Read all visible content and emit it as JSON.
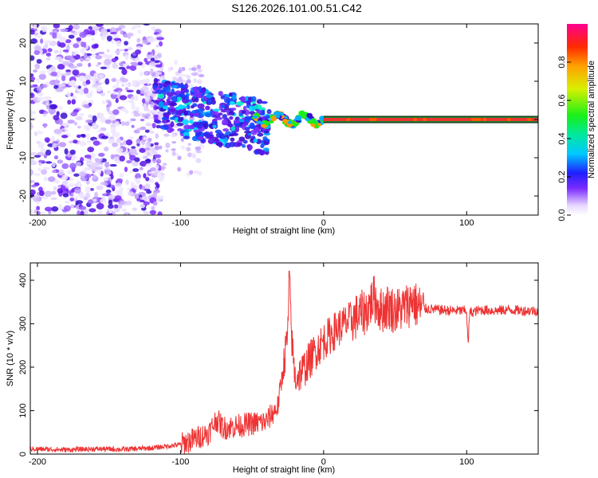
{
  "title": "S126.2026.101.00.51.C42",
  "colors": {
    "line": "#ee3333",
    "frame": "#000000",
    "band_fill": "#ee3333",
    "band_edge": "#1b8a2a",
    "band_outline": "#111111"
  },
  "chart_data": [
    {
      "type": "heatmap",
      "name": "spectrogram",
      "xlabel": "Height of straight line (km)",
      "ylabel": "Frequency (Hz)",
      "xlim": [
        -205,
        150
      ],
      "ylim": [
        -25,
        25
      ],
      "xticks": [
        -200,
        -100,
        0,
        100
      ],
      "xtick_labels": [
        "-200",
        "-100",
        "0",
        "100"
      ],
      "yticks": [
        20,
        10,
        0,
        -10,
        -20
      ],
      "ytick_labels": [
        "20",
        "10",
        "0",
        "-10",
        "-20"
      ],
      "colorbar": {
        "label": "Normalized spectral amplitude",
        "range": [
          0,
          1
        ],
        "ticks": [
          0.0,
          0.2,
          0.4,
          0.6,
          0.8
        ],
        "tick_labels": [
          "0.0",
          "0.2",
          "0.4",
          "0.6",
          "0.8"
        ]
      },
      "regions": [
        {
          "desc": "scattered low-amplitude noise",
          "x_range": [
            -205,
            -120
          ],
          "freq_range": [
            -25,
            25
          ],
          "amplitude": 0.05
        },
        {
          "desc": "broadband descending energy",
          "x_range": [
            -120,
            -40
          ],
          "freq_range": [
            -12,
            12
          ],
          "amplitude": 0.2
        },
        {
          "desc": "narrow tone onset",
          "x_range": [
            -45,
            0
          ],
          "freq_range": [
            -2,
            2
          ],
          "amplitude": 0.6
        },
        {
          "desc": "steady tone",
          "x_range": [
            0,
            150
          ],
          "freq_center": 0,
          "amplitude": 0.95
        }
      ]
    },
    {
      "type": "line",
      "name": "snr",
      "xlabel": "Height of straight line (km)",
      "ylabel": "SNR (10 * v/v)",
      "xlim": [
        -205,
        150
      ],
      "ylim": [
        0,
        440
      ],
      "xticks": [
        -200,
        -100,
        0,
        100
      ],
      "xtick_labels": [
        "-200",
        "-100",
        "0",
        "100"
      ],
      "yticks": [
        0,
        100,
        200,
        300,
        400
      ],
      "ytick_labels": [
        "0",
        "100",
        "200",
        "300",
        "400"
      ],
      "series": [
        {
          "name": "SNR",
          "x": [
            -205,
            -180,
            -160,
            -140,
            -120,
            -110,
            -100,
            -90,
            -80,
            -75,
            -70,
            -60,
            -50,
            -40,
            -32,
            -28,
            -25,
            -24,
            -22,
            -20,
            -15,
            -10,
            -5,
            0,
            10,
            20,
            30,
            35,
            40,
            45,
            50,
            55,
            60,
            62,
            65,
            70,
            80,
            90,
            100,
            101,
            102,
            110,
            120,
            130,
            140,
            150
          ],
          "y": [
            12,
            10,
            12,
            11,
            14,
            18,
            22,
            35,
            50,
            80,
            60,
            65,
            70,
            75,
            110,
            200,
            280,
            410,
            250,
            175,
            190,
            215,
            240,
            260,
            290,
            310,
            330,
            360,
            330,
            340,
            330,
            335,
            345,
            360,
            340,
            335,
            332,
            330,
            330,
            245,
            325,
            332,
            330,
            332,
            330,
            330
          ]
        }
      ]
    }
  ]
}
